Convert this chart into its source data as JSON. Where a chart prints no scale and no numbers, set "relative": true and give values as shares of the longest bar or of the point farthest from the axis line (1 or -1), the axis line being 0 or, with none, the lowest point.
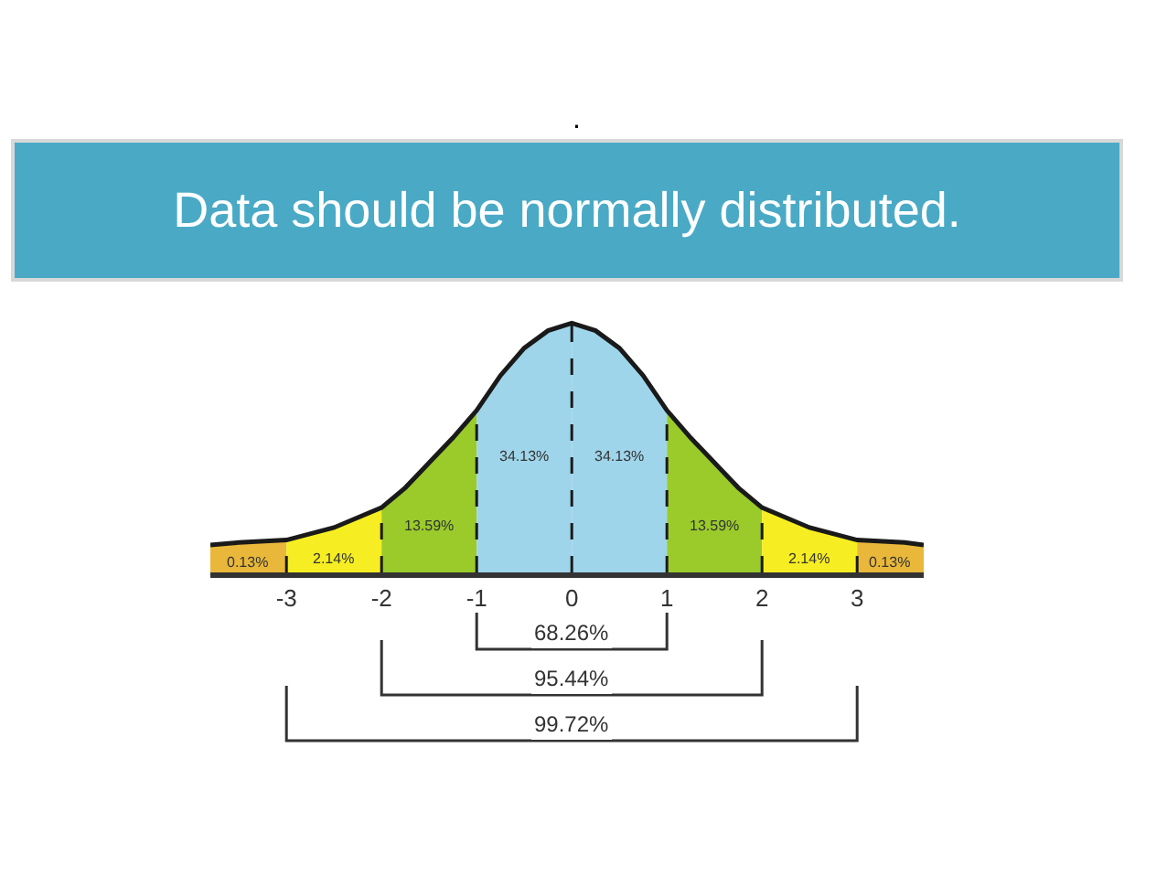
{
  "chart_data": {
    "type": "area",
    "title": "Data should be normally distributed.",
    "subtitle": ".",
    "relative": true,
    "xlim": [
      -3.8,
      3.7
    ],
    "xticks": [
      -3,
      -2,
      -1,
      0,
      1,
      2,
      3
    ],
    "series": [
      {
        "color": "#e9b83a",
        "x": [
          -3.8,
          -3.5,
          -3
        ],
        "values": [
          0.11,
          0.12,
          0.13
        ]
      },
      {
        "color": "#f6ee22",
        "x": [
          -3,
          -2.5,
          -2
        ],
        "values": [
          0.13,
          0.18,
          0.26
        ]
      },
      {
        "color": "#9acb2a",
        "x": [
          -2,
          -1.75,
          -1.5,
          -1.25,
          -1
        ],
        "values": [
          0.26,
          0.34,
          0.44,
          0.54,
          0.65
        ]
      },
      {
        "color": "#9fd5ea",
        "x": [
          -1,
          -0.75,
          -0.5,
          -0.25,
          0
        ],
        "values": [
          0.65,
          0.79,
          0.9,
          0.97,
          1
        ]
      },
      {
        "color": "#9fd5ea",
        "x": [
          0,
          0.25,
          0.5,
          0.75,
          1
        ],
        "values": [
          1,
          0.97,
          0.9,
          0.79,
          0.65
        ]
      },
      {
        "color": "#9acb2a",
        "x": [
          1,
          1.25,
          1.5,
          1.75,
          2
        ],
        "values": [
          0.65,
          0.54,
          0.44,
          0.34,
          0.26
        ]
      },
      {
        "color": "#f6ee22",
        "x": [
          2,
          2.5,
          3
        ],
        "values": [
          0.26,
          0.18,
          0.13
        ]
      },
      {
        "color": "#e9b83a",
        "x": [
          3,
          3.5,
          3.7
        ],
        "values": [
          0.13,
          0.12,
          0.11
        ]
      },
      {
        "type": "line",
        "color": "#1a1a1a",
        "x": [
          -3.8,
          -3.5,
          -3,
          -2.5,
          -2,
          -1.75,
          -1.5,
          -1.25,
          -1,
          -0.75,
          -0.5,
          -0.25,
          0,
          0.25,
          0.5,
          0.75,
          1,
          1.25,
          1.5,
          1.75,
          2,
          2.5,
          3,
          3.5,
          3.7
        ],
        "values": [
          0.11,
          0.12,
          0.13,
          0.18,
          0.26,
          0.34,
          0.44,
          0.54,
          0.65,
          0.79,
          0.9,
          0.97,
          1,
          0.97,
          0.9,
          0.79,
          0.65,
          0.54,
          0.44,
          0.34,
          0.26,
          0.18,
          0.13,
          0.12,
          0.11
        ]
      }
    ],
    "ref_lines": [
      {
        "axis": "x",
        "value": -3,
        "line_style": "dashed"
      },
      {
        "axis": "x",
        "value": -2,
        "line_style": "dashed"
      },
      {
        "axis": "x",
        "value": -1,
        "line_style": "dashed"
      },
      {
        "axis": "x",
        "value": 0,
        "line_style": "dashed"
      },
      {
        "axis": "x",
        "value": 1,
        "line_style": "dashed"
      },
      {
        "axis": "x",
        "value": 2,
        "line_style": "dashed"
      },
      {
        "axis": "x",
        "value": 3,
        "line_style": "dashed"
      }
    ],
    "annotations": [
      "0.13%",
      "2.14%",
      "13.59%",
      "34.13%",
      "34.13%",
      "13.59%",
      "2.14%",
      "0.13%",
      "68.26%",
      "95.44%",
      "99.72%"
    ]
  }
}
